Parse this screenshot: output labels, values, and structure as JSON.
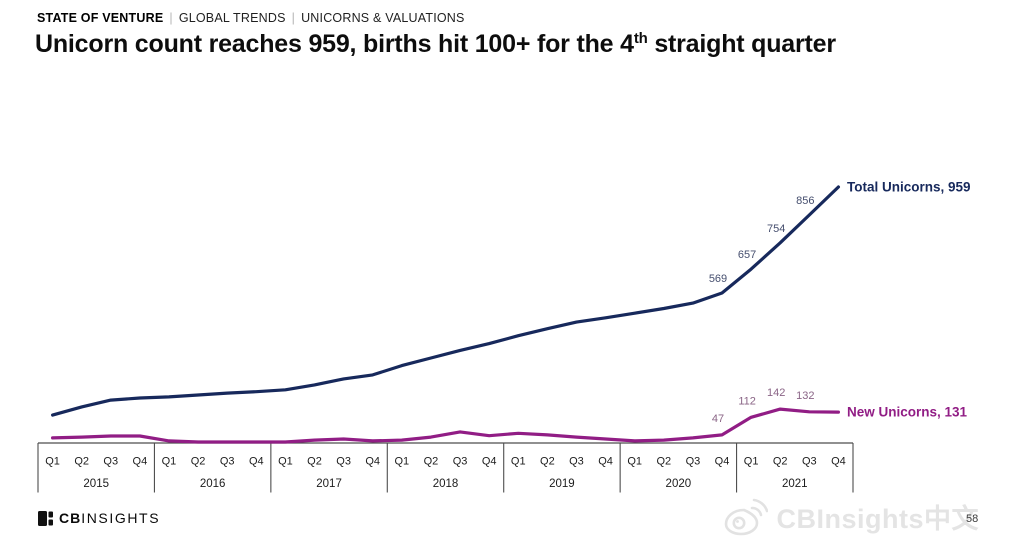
{
  "header": {
    "eyebrow": {
      "brand": "STATE OF VENTURE",
      "separator": "|",
      "items": [
        "GLOBAL TRENDS",
        "UNICORNS & VALUATIONS"
      ]
    },
    "title": {
      "text_before_sup": "Unicorn count reaches 959, births hit 100+ for the 4",
      "sup": "th",
      "text_after_sup": " straight quarter"
    }
  },
  "chart_data": {
    "type": "line",
    "title": "Unicorn count reaches 959, births hit 100+ for the 4th straight quarter",
    "xlabel": "",
    "ylabel": "",
    "ylim": [
      0,
      1000
    ],
    "grid": false,
    "legend_position": "end-of-line",
    "x_axis": {
      "years": [
        "2015",
        "2016",
        "2017",
        "2018",
        "2019",
        "2020",
        "2021"
      ],
      "quarters": [
        "Q1",
        "Q2",
        "Q3",
        "Q4"
      ]
    },
    "series": [
      {
        "name": "Total Unicorns",
        "end_label": "Total Unicorns, 959",
        "color": "#17295c",
        "label_color": "#454e6e",
        "values": [
          120,
          150,
          175,
          183,
          187,
          194,
          201,
          206,
          213,
          231,
          253,
          268,
          302,
          330,
          358,
          383,
          412,
          438,
          462,
          478,
          495,
          512,
          532,
          569,
          657,
          754,
          856,
          959
        ],
        "point_labels": [
          {
            "index": 23,
            "text": "569"
          },
          {
            "index": 24,
            "text": "657"
          },
          {
            "index": 25,
            "text": "754"
          },
          {
            "index": 26,
            "text": "856"
          }
        ]
      },
      {
        "name": "New Unicorns",
        "end_label": "New Unicorns, 131",
        "color": "#911d85",
        "label_color": "#8a6486",
        "values": [
          36,
          39,
          43,
          43,
          25,
          21,
          21,
          21,
          21,
          28,
          32,
          25,
          28,
          39,
          58,
          44,
          53,
          47,
          39,
          32,
          25,
          28,
          36,
          47,
          112,
          142,
          132,
          131
        ],
        "point_labels": [
          {
            "index": 23,
            "text": "47"
          },
          {
            "index": 24,
            "text": "112"
          },
          {
            "index": 25,
            "text": "142"
          },
          {
            "index": 26,
            "text": "132"
          }
        ]
      }
    ]
  },
  "footer": {
    "logo": {
      "bold": "CB",
      "light": "INSIGHTS"
    },
    "watermark_text": "CBInsights中文",
    "page_number": "58"
  }
}
